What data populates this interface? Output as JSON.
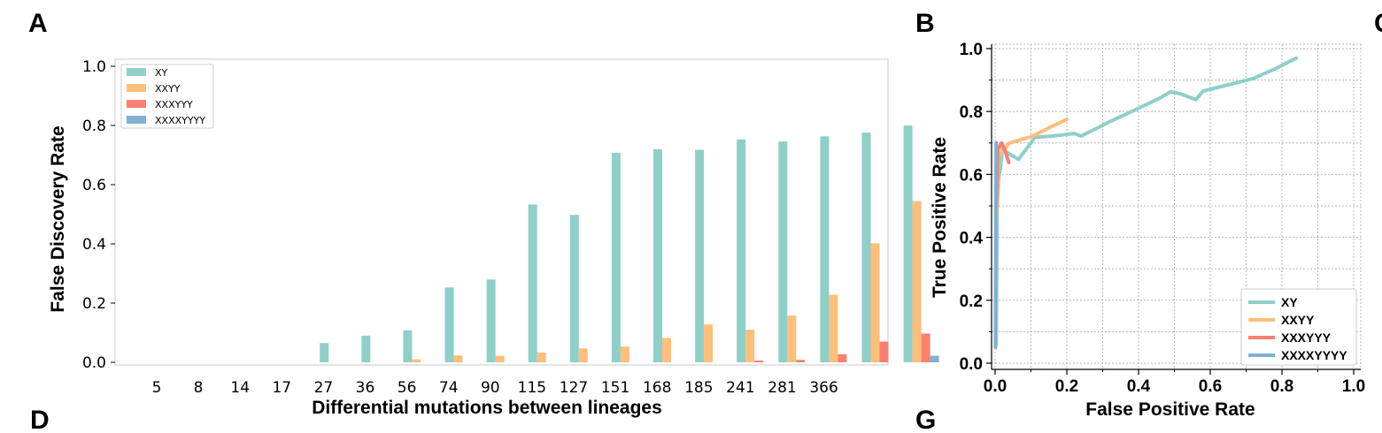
{
  "panels": {
    "a": "A",
    "b": "B",
    "c": "C",
    "d": "D",
    "g": "G"
  },
  "chart_data": [
    {
      "type": "bar",
      "title": "",
      "xlabel": "Differential mutations between lineages",
      "ylabel": "False Discovery Rate",
      "ylim": [
        0,
        1.02
      ],
      "yticks": [
        "0.0",
        "0.2",
        "0.4",
        "0.6",
        "0.8",
        "1.0"
      ],
      "categories": [
        "5",
        "8",
        "14",
        "17",
        "27",
        "36",
        "56",
        "74",
        "90",
        "115",
        "127",
        "151",
        "168",
        "185",
        "241",
        "281",
        "366"
      ],
      "legend_position": "top-left",
      "series": [
        {
          "name": "XY",
          "color": "#8ecfca",
          "values": [
            0,
            0,
            0.065,
            0.09,
            0.108,
            0.253,
            0.28,
            0.533,
            0.498,
            0.708,
            0.72,
            0.718,
            0.753,
            0.746,
            0.763,
            0.776,
            0.8
          ]
        },
        {
          "name": "XXYY",
          "color": "#ffbe7a",
          "values": [
            0,
            0,
            0,
            0,
            0.01,
            0.023,
            0.022,
            0.033,
            0.047,
            0.053,
            0.082,
            0.128,
            0.11,
            0.158,
            0.228,
            0.402,
            0.545
          ]
        },
        {
          "name": "XXXYYY",
          "color": "#fa7f6f",
          "values": [
            0,
            0,
            0,
            0,
            0,
            0,
            0,
            0,
            0,
            0,
            0,
            0,
            0.006,
            0.008,
            0.027,
            0.07,
            0.097
          ]
        },
        {
          "name": "XXXXYYYY",
          "color": "#82b0d2",
          "values": [
            0,
            0,
            0,
            0,
            0,
            0,
            0,
            0,
            0,
            0,
            0,
            0,
            0,
            0,
            0,
            0,
            0.022
          ]
        }
      ]
    },
    {
      "type": "line",
      "title": "",
      "xlabel": "False Positive Rate",
      "ylabel": "True Positive Rate",
      "xlim": [
        0,
        1.02
      ],
      "ylim": [
        0,
        1.02
      ],
      "xticks": [
        "0.0",
        "0.2",
        "0.4",
        "0.6",
        "0.8",
        "1.0"
      ],
      "yticks": [
        "0.0",
        "0.2",
        "0.4",
        "0.6",
        "0.8",
        "1.0"
      ],
      "grid": true,
      "legend_position": "bottom-right",
      "series": [
        {
          "name": "XY",
          "color": "#8ecfca",
          "points": [
            [
              0.003,
              0.06
            ],
            [
              0.006,
              0.5
            ],
            [
              0.01,
              0.59
            ],
            [
              0.015,
              0.62
            ],
            [
              0.02,
              0.68
            ],
            [
              0.04,
              0.665
            ],
            [
              0.065,
              0.648
            ],
            [
              0.1,
              0.7
            ],
            [
              0.11,
              0.718
            ],
            [
              0.16,
              0.722
            ],
            [
              0.22,
              0.73
            ],
            [
              0.24,
              0.722
            ],
            [
              0.32,
              0.768
            ],
            [
              0.4,
              0.81
            ],
            [
              0.46,
              0.843
            ],
            [
              0.49,
              0.863
            ],
            [
              0.52,
              0.855
            ],
            [
              0.56,
              0.838
            ],
            [
              0.58,
              0.865
            ],
            [
              0.64,
              0.882
            ],
            [
              0.72,
              0.905
            ],
            [
              0.78,
              0.935
            ],
            [
              0.84,
              0.97
            ]
          ]
        },
        {
          "name": "XXYY",
          "color": "#ffbe7a",
          "points": [
            [
              0.003,
              0.45
            ],
            [
              0.008,
              0.66
            ],
            [
              0.018,
              0.67
            ],
            [
              0.04,
              0.7
            ],
            [
              0.1,
              0.72
            ],
            [
              0.15,
              0.748
            ],
            [
              0.2,
              0.775
            ]
          ]
        },
        {
          "name": "XXXYYY",
          "color": "#fa7f6f",
          "points": [
            [
              0.003,
              0.5
            ],
            [
              0.008,
              0.68
            ],
            [
              0.018,
              0.7
            ],
            [
              0.028,
              0.675
            ],
            [
              0.038,
              0.638
            ]
          ]
        },
        {
          "name": "XXXXYYYY",
          "color": "#82b0d2",
          "points": [
            [
              0.001,
              0.05
            ],
            [
              0.002,
              0.5
            ],
            [
              0.003,
              0.7
            ]
          ]
        }
      ]
    }
  ]
}
